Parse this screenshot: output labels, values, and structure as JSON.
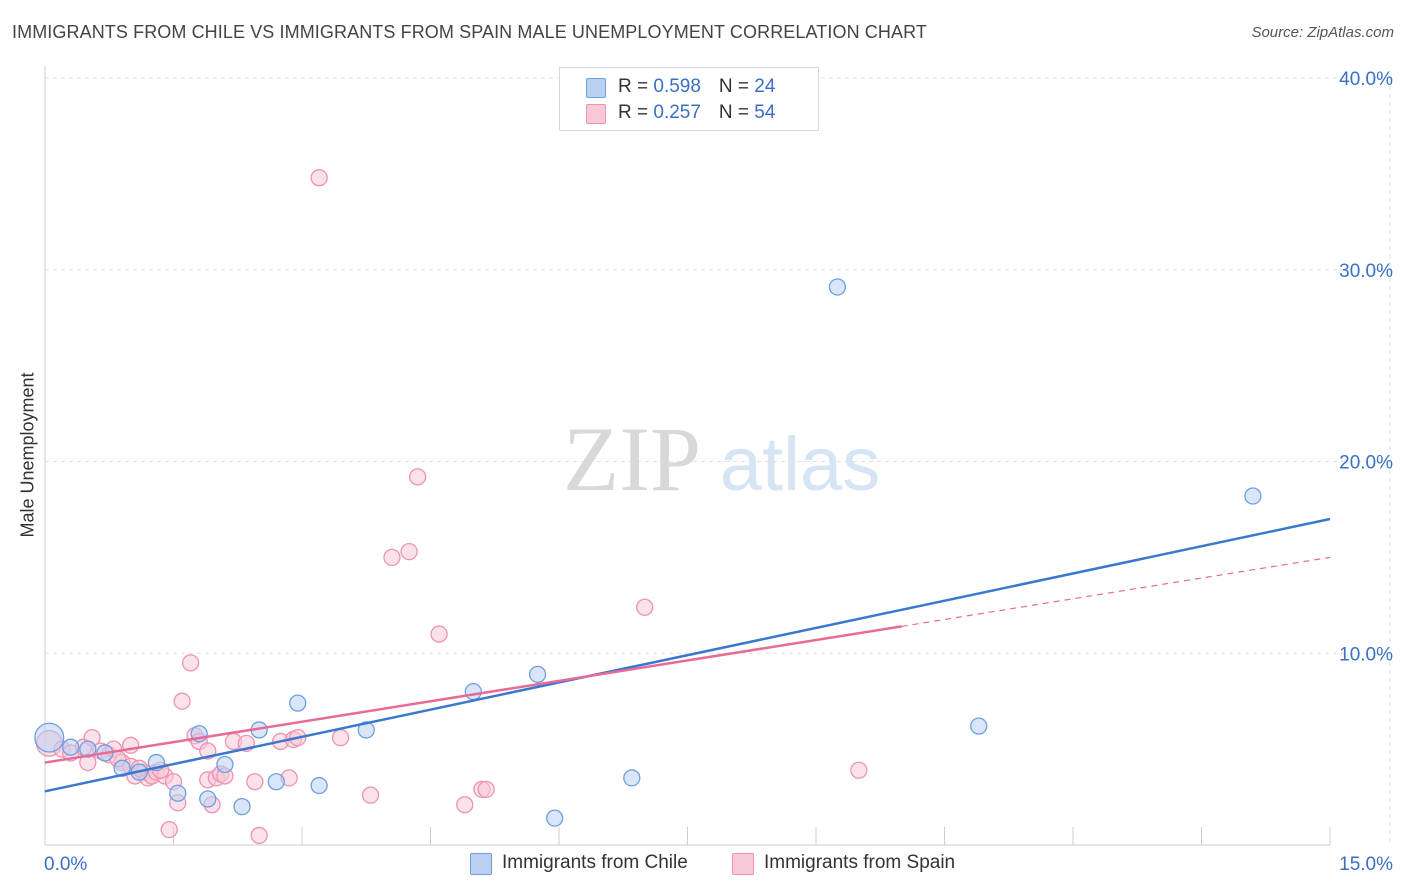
{
  "chart_data": {
    "type": "scatter",
    "title": "IMMIGRANTS FROM CHILE VS IMMIGRANTS FROM SPAIN MALE UNEMPLOYMENT CORRELATION CHART",
    "source": "Source: ZipAtlas.com",
    "ylabel": "Male Unemployment",
    "xlabel": "",
    "xlim": [
      0,
      15
    ],
    "ylim": [
      0,
      40
    ],
    "x_tick_labels": [
      "0.0%",
      "15.0%"
    ],
    "y_ticks": [
      10,
      20,
      30,
      40
    ],
    "y_tick_labels": [
      "10.0%",
      "20.0%",
      "30.0%",
      "40.0%"
    ],
    "grid": true,
    "watermark": {
      "zip": "ZIP",
      "atlas": "atlas"
    },
    "legend_stats": [
      {
        "r_label": "R = ",
        "r_value": "0.598",
        "n_label": "N = ",
        "n_value": "24"
      },
      {
        "r_label": "R = ",
        "r_value": "0.257",
        "n_label": "N = ",
        "n_value": "54"
      }
    ],
    "series": [
      {
        "name": "Immigrants from Chile",
        "color": "#6e9fe0",
        "fill": "#b9d0f2",
        "line_color": "#3a78d0",
        "trend": {
          "x0": 0,
          "y0": 2.8,
          "x1": 15,
          "y1": 17.0
        },
        "points": [
          [
            0.05,
            5.6,
            1.8
          ],
          [
            0.3,
            5.1,
            1
          ],
          [
            0.5,
            5.0,
            1
          ],
          [
            0.7,
            4.8,
            1
          ],
          [
            0.9,
            4.0,
            1
          ],
          [
            1.1,
            3.8,
            1
          ],
          [
            1.3,
            4.3,
            1
          ],
          [
            1.55,
            2.7,
            1
          ],
          [
            1.8,
            5.8,
            1
          ],
          [
            1.9,
            2.4,
            1
          ],
          [
            2.1,
            4.2,
            1
          ],
          [
            2.3,
            2.0,
            1
          ],
          [
            2.5,
            6.0,
            1
          ],
          [
            2.7,
            3.3,
            1
          ],
          [
            2.95,
            7.4,
            1
          ],
          [
            3.2,
            3.1,
            1
          ],
          [
            3.75,
            6.0,
            1
          ],
          [
            5.0,
            8.0,
            1
          ],
          [
            5.75,
            8.9,
            1
          ],
          [
            5.95,
            1.4,
            1
          ],
          [
            6.85,
            3.5,
            1
          ],
          [
            9.25,
            29.1,
            1
          ],
          [
            10.9,
            6.2,
            1
          ],
          [
            14.1,
            18.2,
            1
          ]
        ]
      },
      {
        "name": "Immigrants from Spain",
        "color": "#ef93b0",
        "fill": "#f8c8d7",
        "line_color": "#e86a97",
        "trend": {
          "x0": 0,
          "y0": 4.3,
          "x1": 10.0,
          "y1": 11.4
        },
        "trend_dashed": {
          "x0": 10.0,
          "y0": 11.4,
          "x1": 15,
          "y1": 15.0
        },
        "points": [
          [
            0.05,
            5.3,
            1.6
          ],
          [
            0.2,
            5.0,
            1
          ],
          [
            0.3,
            4.8,
            1
          ],
          [
            0.45,
            5.1,
            1
          ],
          [
            0.5,
            4.3,
            1
          ],
          [
            0.55,
            5.6,
            1
          ],
          [
            0.65,
            4.9,
            1
          ],
          [
            0.75,
            4.7,
            1
          ],
          [
            0.8,
            5.0,
            1
          ],
          [
            0.9,
            4.3,
            1
          ],
          [
            1.0,
            4.1,
            1
          ],
          [
            1.0,
            5.2,
            1
          ],
          [
            1.05,
            3.6,
            1
          ],
          [
            1.15,
            3.8,
            1
          ],
          [
            1.2,
            3.5,
            1
          ],
          [
            1.25,
            3.6,
            1
          ],
          [
            1.3,
            3.8,
            1
          ],
          [
            1.4,
            3.6,
            1
          ],
          [
            1.45,
            0.8,
            1
          ],
          [
            1.5,
            3.3,
            1
          ],
          [
            1.55,
            2.2,
            1
          ],
          [
            1.6,
            7.5,
            1
          ],
          [
            1.7,
            9.5,
            1
          ],
          [
            1.75,
            5.7,
            1
          ],
          [
            1.8,
            5.4,
            1
          ],
          [
            1.9,
            4.9,
            1
          ],
          [
            1.9,
            3.4,
            1
          ],
          [
            1.95,
            2.1,
            1
          ],
          [
            2.0,
            3.5,
            1
          ],
          [
            2.05,
            3.7,
            1
          ],
          [
            2.1,
            3.6,
            1
          ],
          [
            2.2,
            5.4,
            1
          ],
          [
            2.45,
            3.3,
            1
          ],
          [
            2.5,
            0.5,
            1
          ],
          [
            2.75,
            5.4,
            1
          ],
          [
            2.85,
            3.5,
            1
          ],
          [
            2.9,
            5.5,
            1
          ],
          [
            2.95,
            5.6,
            1
          ],
          [
            3.2,
            34.8,
            1
          ],
          [
            3.45,
            5.6,
            1
          ],
          [
            3.8,
            2.6,
            1
          ],
          [
            4.05,
            15.0,
            1
          ],
          [
            4.25,
            15.3,
            1
          ],
          [
            4.35,
            19.2,
            1
          ],
          [
            4.6,
            11.0,
            1
          ],
          [
            4.9,
            2.1,
            1
          ],
          [
            5.1,
            2.9,
            1
          ],
          [
            5.15,
            2.9,
            1
          ],
          [
            7.0,
            12.4,
            1
          ],
          [
            9.5,
            3.9,
            1
          ],
          [
            1.35,
            3.9,
            1
          ],
          [
            0.85,
            4.5,
            1
          ],
          [
            2.35,
            5.3,
            1
          ],
          [
            1.1,
            4.0,
            1
          ]
        ]
      }
    ]
  }
}
